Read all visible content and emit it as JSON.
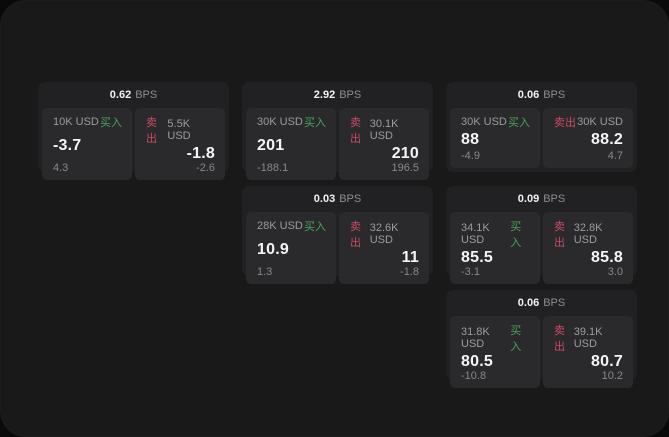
{
  "labels": {
    "buy": "买入",
    "sell": "卖出",
    "bps_unit": "BPS"
  },
  "colors": {
    "buy_green": "#46a55f",
    "sell_red": "#cc4a66",
    "panel_bg": "#2a2a2c",
    "card_bg": "#212123",
    "surface_bg": "#19191a"
  },
  "cards": [
    {
      "bps": "0.62",
      "buy": {
        "size": "10K USD",
        "price": "-3.7",
        "delta": "4.3"
      },
      "sell": {
        "size": "5.5K USD",
        "price": "-1.8",
        "delta": "-2.6"
      }
    },
    {
      "bps": "2.92",
      "buy": {
        "size": "30K USD",
        "price": "201",
        "delta": "-188.1"
      },
      "sell": {
        "size": "30.1K USD",
        "price": "210",
        "delta": "196.5"
      }
    },
    {
      "bps": "0.06",
      "buy": {
        "size": "30K USD",
        "price": "88",
        "delta": "-4.9"
      },
      "sell": {
        "size": "30K USD",
        "price": "88.2",
        "delta": "4.7"
      }
    },
    {
      "bps": "0.03",
      "buy": {
        "size": "28K USD",
        "price": "10.9",
        "delta": "1.3"
      },
      "sell": {
        "size": "32.6K USD",
        "price": "11",
        "delta": "-1.8"
      }
    },
    {
      "bps": "0.09",
      "buy": {
        "size": "34.1K USD",
        "price": "85.5",
        "delta": "-3.1"
      },
      "sell": {
        "size": "32.8K USD",
        "price": "85.8",
        "delta": "3.0"
      }
    },
    {
      "bps": "0.06",
      "buy": {
        "size": "31.8K USD",
        "price": "80.5",
        "delta": "-10.8"
      },
      "sell": {
        "size": "39.1K USD",
        "price": "80.7",
        "delta": "10.2"
      }
    }
  ]
}
